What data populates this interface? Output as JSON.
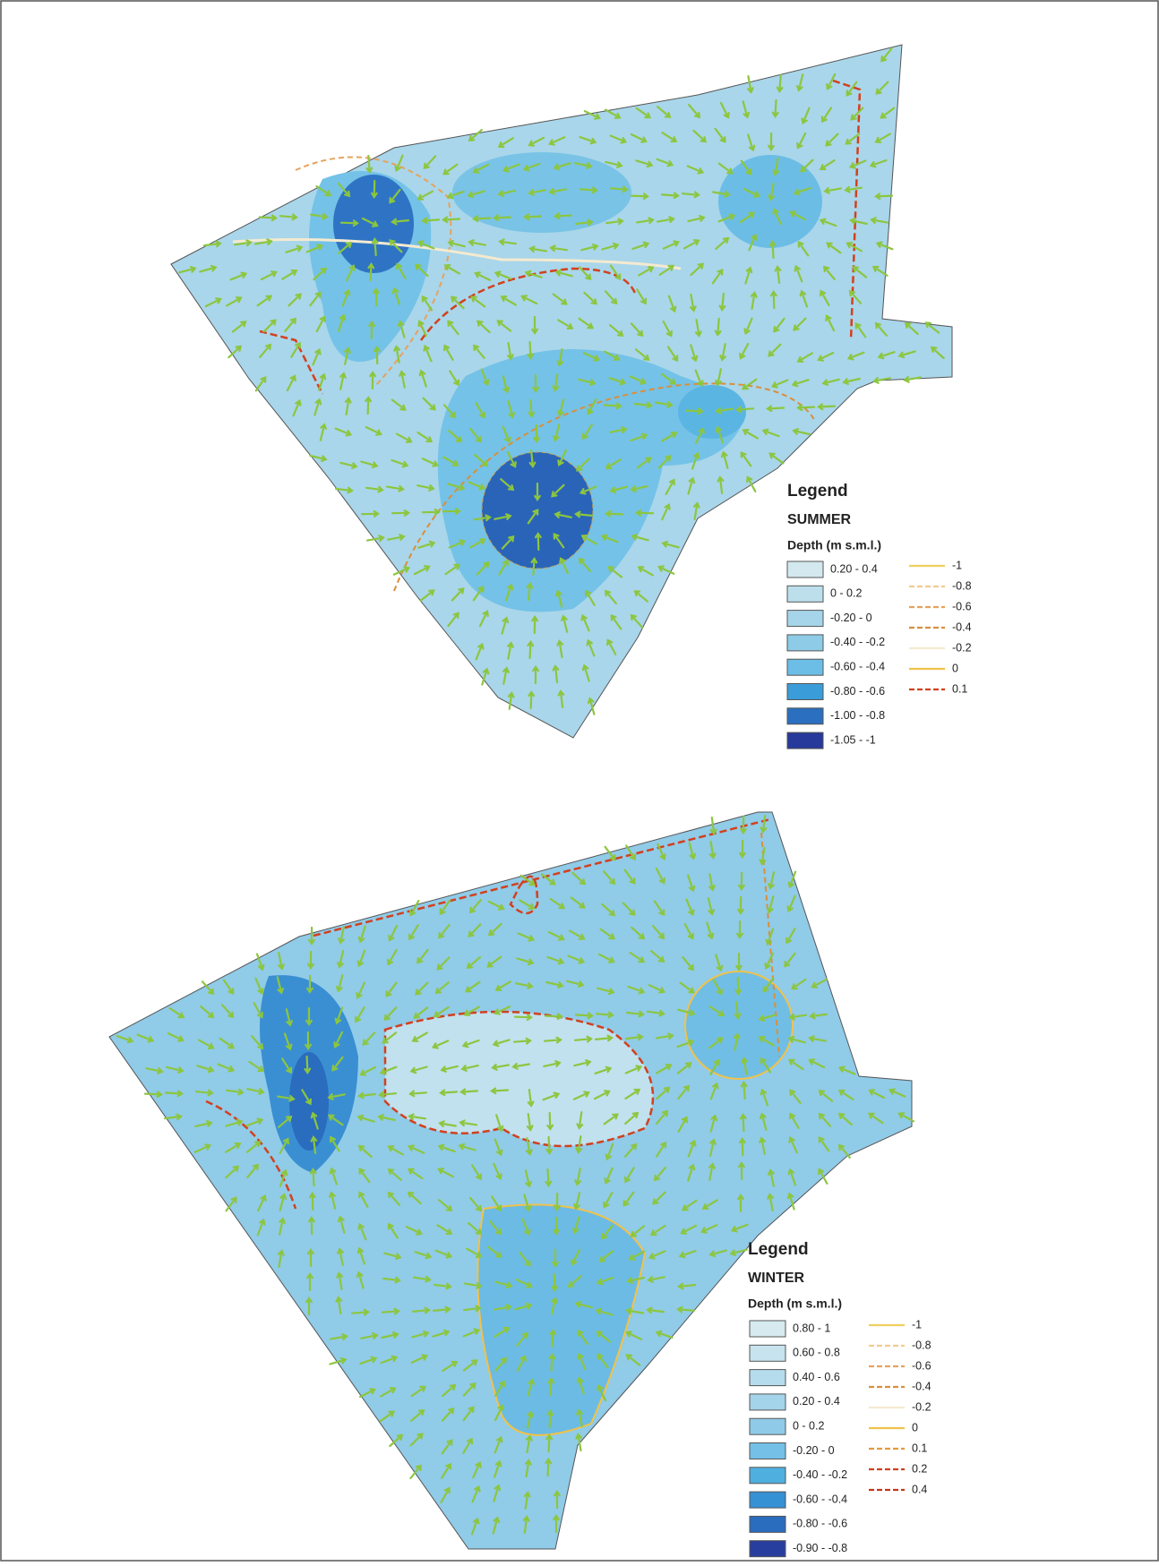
{
  "maps": [
    {
      "legend_title": "Legend",
      "season": "SUMMER",
      "depth_title": "Depth (m s.m.l.)",
      "fill_classes": [
        {
          "label": "0.20 - 0.4",
          "color": "#d3e8ef"
        },
        {
          "label": "0 - 0.2",
          "color": "#bddfec"
        },
        {
          "label": "-0.20 - 0",
          "color": "#a6d5e9"
        },
        {
          "label": "-0.40 - -0.2",
          "color": "#8dcbe7"
        },
        {
          "label": "-0.60 - -0.4",
          "color": "#6cbee6"
        },
        {
          "label": "-0.80 - -0.6",
          "color": "#3a9dd9"
        },
        {
          "label": "-1.00 - -0.8",
          "color": "#2a6fc0"
        },
        {
          "label": "-1.05 - -1",
          "color": "#27399a"
        }
      ],
      "contour_lines": [
        {
          "label": "-1",
          "color": "#f0cf5e",
          "style": "solid"
        },
        {
          "label": "-0.8",
          "color": "#f2cc90",
          "style": "dashed"
        },
        {
          "label": "-0.6",
          "color": "#e6a25e",
          "style": "dashed"
        },
        {
          "label": "-0.4",
          "color": "#d98f3c",
          "style": "dashed"
        },
        {
          "label": "-0.2",
          "color": "#f4ead0",
          "style": "solid"
        },
        {
          "label": "0",
          "color": "#f0c24a",
          "style": "solid"
        },
        {
          "label": "0.1",
          "color": "#d2401e",
          "style": "dashed"
        }
      ]
    },
    {
      "legend_title": "Legend",
      "season": "WINTER",
      "depth_title": "Depth (m s.m.l.)",
      "fill_classes": [
        {
          "label": "0.80 - 1",
          "color": "#d6eaf0"
        },
        {
          "label": "0.60 - 0.8",
          "color": "#c6e3ee"
        },
        {
          "label": "0.40 - 0.6",
          "color": "#b5dcec"
        },
        {
          "label": "0.20 - 0.4",
          "color": "#a3d4ea"
        },
        {
          "label": "0 - 0.2",
          "color": "#8fcbe8"
        },
        {
          "label": "-0.20 - 0",
          "color": "#74c0e6"
        },
        {
          "label": "-0.40 - -0.2",
          "color": "#4fb0e0"
        },
        {
          "label": "-0.60 - -0.4",
          "color": "#3590d4"
        },
        {
          "label": "-0.80 - -0.6",
          "color": "#2a6cbe"
        },
        {
          "label": "-0.90 - -0.8",
          "color": "#283e9e"
        }
      ],
      "contour_lines": [
        {
          "label": "-1",
          "color": "#f0cf5e",
          "style": "solid"
        },
        {
          "label": "-0.8",
          "color": "#f2cc90",
          "style": "dashed"
        },
        {
          "label": "-0.6",
          "color": "#e6a25e",
          "style": "dashed"
        },
        {
          "label": "-0.4",
          "color": "#d98f3c",
          "style": "dashed"
        },
        {
          "label": "-0.2",
          "color": "#f4ead0",
          "style": "solid"
        },
        {
          "label": "0",
          "color": "#f0c24a",
          "style": "solid"
        },
        {
          "label": "0.1",
          "color": "#e39a3c",
          "style": "dashed"
        },
        {
          "label": "0.2",
          "color": "#d2401e",
          "style": "dashed"
        },
        {
          "label": "0.4",
          "color": "#c4361a",
          "style": "dashed"
        }
      ]
    }
  ]
}
